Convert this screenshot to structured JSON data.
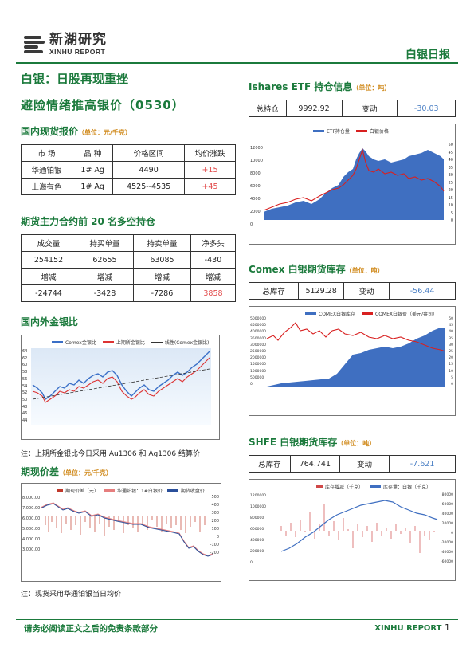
{
  "header": {
    "logo_cn": "新湖研究",
    "logo_en": "XINHU REPORT",
    "report_name": "白银日报"
  },
  "headline": {
    "line1": "白银：日股再现重挫",
    "line2": "避险情绪推高银价（0530）"
  },
  "spot": {
    "title": "国内现货报价",
    "unit": "（单位：元/千克）",
    "headers": [
      "市 场",
      "品 种",
      "价格区间",
      "均价涨跌"
    ],
    "rows": [
      [
        "华通铂银",
        "1# Ag",
        "4490",
        "+15"
      ],
      [
        "上海有色",
        "1# Ag",
        "4525--4535",
        "+45"
      ]
    ]
  },
  "futures": {
    "title": "期货主力合约前 20 名多空持仓",
    "headers": [
      "成交量",
      "持买单量",
      "持卖单量",
      "净多头"
    ],
    "row1": [
      "254152",
      "62655",
      "63085",
      "-430"
    ],
    "mid": [
      "增减",
      "增减",
      "增减",
      "增减"
    ],
    "row2": [
      "-24744",
      "-3428",
      "-7286",
      "3858"
    ]
  },
  "ratio": {
    "title": "国内外金银比",
    "legend": [
      "Comex金银比",
      "上期所金银比",
      "线性(Comex金银比)"
    ],
    "y_ticks": [
      "64",
      "62",
      "60",
      "58",
      "56",
      "54",
      "52",
      "50",
      "48",
      "46",
      "44"
    ],
    "note": "注：上期所金银比今日采用 Au1306 和 Ag1306 结算价"
  },
  "spread": {
    "title": "期现价差",
    "unit": "（单位：元/千克）",
    "legend": [
      "期现价差（元）",
      "华通铂银：1#白银价",
      "期货收盘价"
    ],
    "y_left": [
      "8,000.00",
      "7,000.00",
      "6,000.00",
      "5,000.00",
      "4,000.00",
      "3,000.00"
    ],
    "y_right": [
      "500",
      "400",
      "300",
      "200",
      "100",
      "0",
      "-100",
      "-200"
    ],
    "note": "注：现货采用华通铂银当日均价"
  },
  "etf": {
    "title": "Ishares ETF 持仓信息",
    "unit": "（单位：吨）",
    "label_total": "总持仓",
    "total": "9992.92",
    "label_change": "变动",
    "change": "-30.03",
    "legend": [
      "ETF持仓量",
      "白银价格"
    ],
    "y_left": [
      "12000",
      "10000",
      "8000",
      "6000",
      "4000",
      "2000",
      "0"
    ],
    "y_right": [
      "50",
      "45",
      "40",
      "35",
      "30",
      "25",
      "20",
      "15",
      "10",
      "5",
      "0"
    ]
  },
  "comex": {
    "title": "Comex 白银期货库存",
    "unit": "（单位：吨）",
    "label_total": "总库存",
    "total": "5129.28",
    "label_change": "变动",
    "change": "-56.44",
    "legend": [
      "COMEX白银库存",
      "COMEX白银价（美元/盎司）"
    ],
    "y_left": [
      "5000000",
      "4500000",
      "4000000",
      "3500000",
      "3000000",
      "2500000",
      "2000000",
      "1500000",
      "1000000",
      "500000",
      "0"
    ],
    "y_right": [
      "50",
      "45",
      "40",
      "35",
      "30",
      "25",
      "20",
      "15",
      "10",
      "5",
      "0"
    ]
  },
  "shfe": {
    "title": "SHFE 白银期货库存",
    "unit": "（单位：吨）",
    "label_total": "总库存",
    "total": "764.741",
    "label_change": "变动",
    "change": "-7.621",
    "legend": [
      "库存增减（千克）",
      "库存量：白银（千克）"
    ],
    "y_left": [
      "1200000",
      "1000000",
      "800000",
      "600000",
      "400000",
      "200000",
      "0"
    ],
    "y_right": [
      "80000",
      "60000",
      "40000",
      "20000",
      "0",
      "-20000",
      "-40000",
      "-60000"
    ]
  },
  "footer": {
    "disclaimer": "请务必阅读正文之后的免责条款部分",
    "brand": "XINHU REPORT",
    "page": "1"
  }
}
